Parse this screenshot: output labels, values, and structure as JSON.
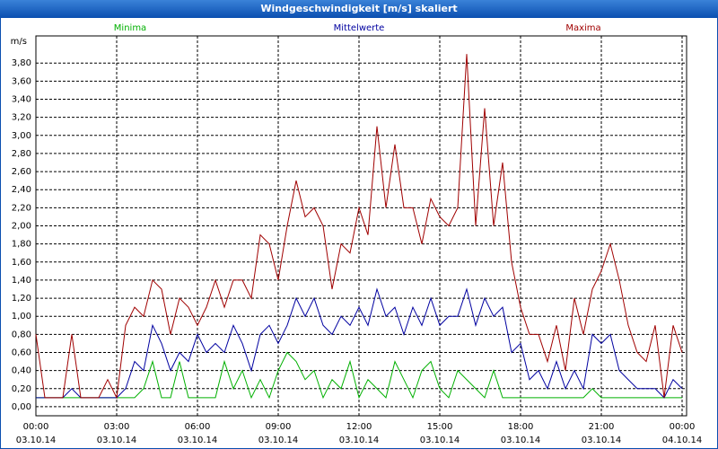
{
  "chart_data": {
    "type": "line",
    "title": "Windgeschwindigkeit [m/s] skaliert",
    "ylabel": "m/s",
    "x": [
      0,
      20,
      40,
      60,
      80,
      100,
      120,
      140,
      160,
      180,
      200,
      220,
      240,
      260,
      280,
      300,
      320,
      340,
      360,
      380,
      400,
      420,
      440,
      460,
      480,
      500,
      520,
      540,
      560,
      580,
      600,
      620,
      640,
      660,
      680,
      700,
      720,
      740,
      760,
      780,
      800,
      820,
      840,
      860,
      880,
      900,
      920,
      940,
      960,
      980,
      1000,
      1020,
      1040,
      1060,
      1080,
      1100,
      1120,
      1140,
      1160,
      1180,
      1200,
      1220,
      1240,
      1260,
      1280,
      1300,
      1320,
      1340,
      1360,
      1380,
      1400,
      1420,
      1440
    ],
    "series": [
      {
        "name": "Minima",
        "color": "#00b000",
        "values": [
          0.1,
          0.1,
          0.1,
          0.1,
          0.1,
          0.1,
          0.1,
          0.1,
          0.1,
          0.1,
          0.1,
          0.1,
          0.2,
          0.5,
          0.1,
          0.1,
          0.5,
          0.1,
          0.1,
          0.1,
          0.1,
          0.5,
          0.2,
          0.4,
          0.1,
          0.3,
          0.1,
          0.4,
          0.6,
          0.5,
          0.3,
          0.4,
          0.1,
          0.3,
          0.2,
          0.5,
          0.1,
          0.3,
          0.2,
          0.1,
          0.5,
          0.3,
          0.1,
          0.4,
          0.5,
          0.2,
          0.1,
          0.4,
          0.3,
          0.2,
          0.1,
          0.4,
          0.1,
          0.1,
          0.1,
          0.1,
          0.1,
          0.1,
          0.1,
          0.1,
          0.1,
          0.1,
          0.2,
          0.1,
          0.1,
          0.1,
          0.1,
          0.1,
          0.1,
          0.1,
          0.1,
          0.1,
          0.1
        ]
      },
      {
        "name": "Mittelwerte",
        "color": "#0000a0",
        "values": [
          0.1,
          0.1,
          0.1,
          0.1,
          0.2,
          0.1,
          0.1,
          0.1,
          0.1,
          0.1,
          0.2,
          0.5,
          0.4,
          0.9,
          0.7,
          0.4,
          0.6,
          0.5,
          0.8,
          0.6,
          0.7,
          0.6,
          0.9,
          0.7,
          0.4,
          0.8,
          0.9,
          0.7,
          0.9,
          1.2,
          1.0,
          1.2,
          0.9,
          0.8,
          1.0,
          0.9,
          1.1,
          0.9,
          1.3,
          1.0,
          1.1,
          0.8,
          1.1,
          0.9,
          1.2,
          0.9,
          1.0,
          1.0,
          1.3,
          0.9,
          1.2,
          1.0,
          1.1,
          0.6,
          0.7,
          0.3,
          0.4,
          0.2,
          0.5,
          0.2,
          0.4,
          0.2,
          0.8,
          0.7,
          0.8,
          0.4,
          0.3,
          0.2,
          0.2,
          0.2,
          0.1,
          0.3,
          0.2
        ]
      },
      {
        "name": "Maxima",
        "color": "#a00000",
        "values": [
          0.8,
          0.1,
          0.1,
          0.1,
          0.8,
          0.1,
          0.1,
          0.1,
          0.3,
          0.1,
          0.9,
          1.1,
          1.0,
          1.4,
          1.3,
          0.8,
          1.2,
          1.1,
          0.9,
          1.1,
          1.4,
          1.1,
          1.4,
          1.4,
          1.2,
          1.9,
          1.8,
          1.4,
          2.0,
          2.5,
          2.1,
          2.2,
          2.0,
          1.3,
          1.8,
          1.7,
          2.2,
          1.9,
          3.1,
          2.2,
          2.9,
          2.2,
          2.2,
          1.8,
          2.3,
          2.1,
          2.0,
          2.2,
          3.9,
          2.0,
          3.3,
          2.0,
          2.7,
          1.6,
          1.1,
          0.8,
          0.8,
          0.5,
          0.9,
          0.4,
          1.2,
          0.8,
          1.3,
          1.5,
          1.8,
          1.4,
          0.9,
          0.6,
          0.5,
          0.9,
          0.1,
          0.9,
          0.6
        ]
      }
    ],
    "xlim": [
      0,
      1440
    ],
    "xticks": [
      {
        "value": 0,
        "label": "00:00",
        "date": "03.10.14"
      },
      {
        "value": 180,
        "label": "03:00",
        "date": "03.10.14"
      },
      {
        "value": 360,
        "label": "06:00",
        "date": "03.10.14"
      },
      {
        "value": 540,
        "label": "09:00",
        "date": "03.10.14"
      },
      {
        "value": 720,
        "label": "12:00",
        "date": "03.10.14"
      },
      {
        "value": 900,
        "label": "15:00",
        "date": "03.10.14"
      },
      {
        "value": 1080,
        "label": "18:00",
        "date": "03.10.14"
      },
      {
        "value": 1260,
        "label": "21:00",
        "date": "03.10.14"
      },
      {
        "value": 1440,
        "label": "00:00",
        "date": "04.10.14"
      }
    ],
    "ylim": [
      -0.1,
      4.1
    ],
    "yticks": [
      {
        "value": 0,
        "label": "0,00"
      },
      {
        "value": 0.2,
        "label": "0,20"
      },
      {
        "value": 0.4,
        "label": "0,40"
      },
      {
        "value": 0.6,
        "label": "0,60"
      },
      {
        "value": 0.8,
        "label": "0,80"
      },
      {
        "value": 1.0,
        "label": "1,00"
      },
      {
        "value": 1.2,
        "label": "1,20"
      },
      {
        "value": 1.4,
        "label": "1,40"
      },
      {
        "value": 1.6,
        "label": "1,60"
      },
      {
        "value": 1.8,
        "label": "1,80"
      },
      {
        "value": 2.0,
        "label": "2,00"
      },
      {
        "value": 2.2,
        "label": "2,20"
      },
      {
        "value": 2.4,
        "label": "2,40"
      },
      {
        "value": 2.6,
        "label": "2,60"
      },
      {
        "value": 2.8,
        "label": "2,80"
      },
      {
        "value": 3.0,
        "label": "3,00"
      },
      {
        "value": 3.2,
        "label": "3,20"
      },
      {
        "value": 3.4,
        "label": "3,40"
      },
      {
        "value": 3.6,
        "label": "3,60"
      },
      {
        "value": 3.8,
        "label": "3,80"
      }
    ],
    "grid": true
  }
}
